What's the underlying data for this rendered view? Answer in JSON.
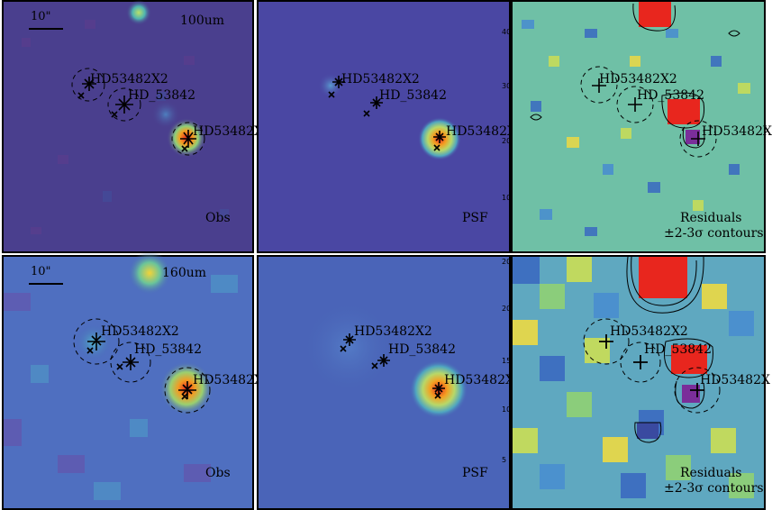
{
  "scale_label": "10\"",
  "bands": [
    "100um",
    "160um"
  ],
  "columns": [
    "Obs",
    "PSF",
    "Residuals"
  ],
  "contour_note": "±2-3σ contours",
  "sources": {
    "s1": "HD53482X2",
    "s2": "HD_53842",
    "s3": "HD53482X"
  },
  "axis_ticks": {
    "top_row": [
      "40",
      "30",
      "20",
      "10"
    ],
    "bottom_row": [
      "20",
      "15",
      "10",
      "5"
    ]
  },
  "colors": {
    "background_obs_100": "#4a3f8e",
    "background_psf": "#4a47a3",
    "background_resid": "#6fc0a6",
    "peak": "#e8261e",
    "accent": "#f3d338"
  }
}
